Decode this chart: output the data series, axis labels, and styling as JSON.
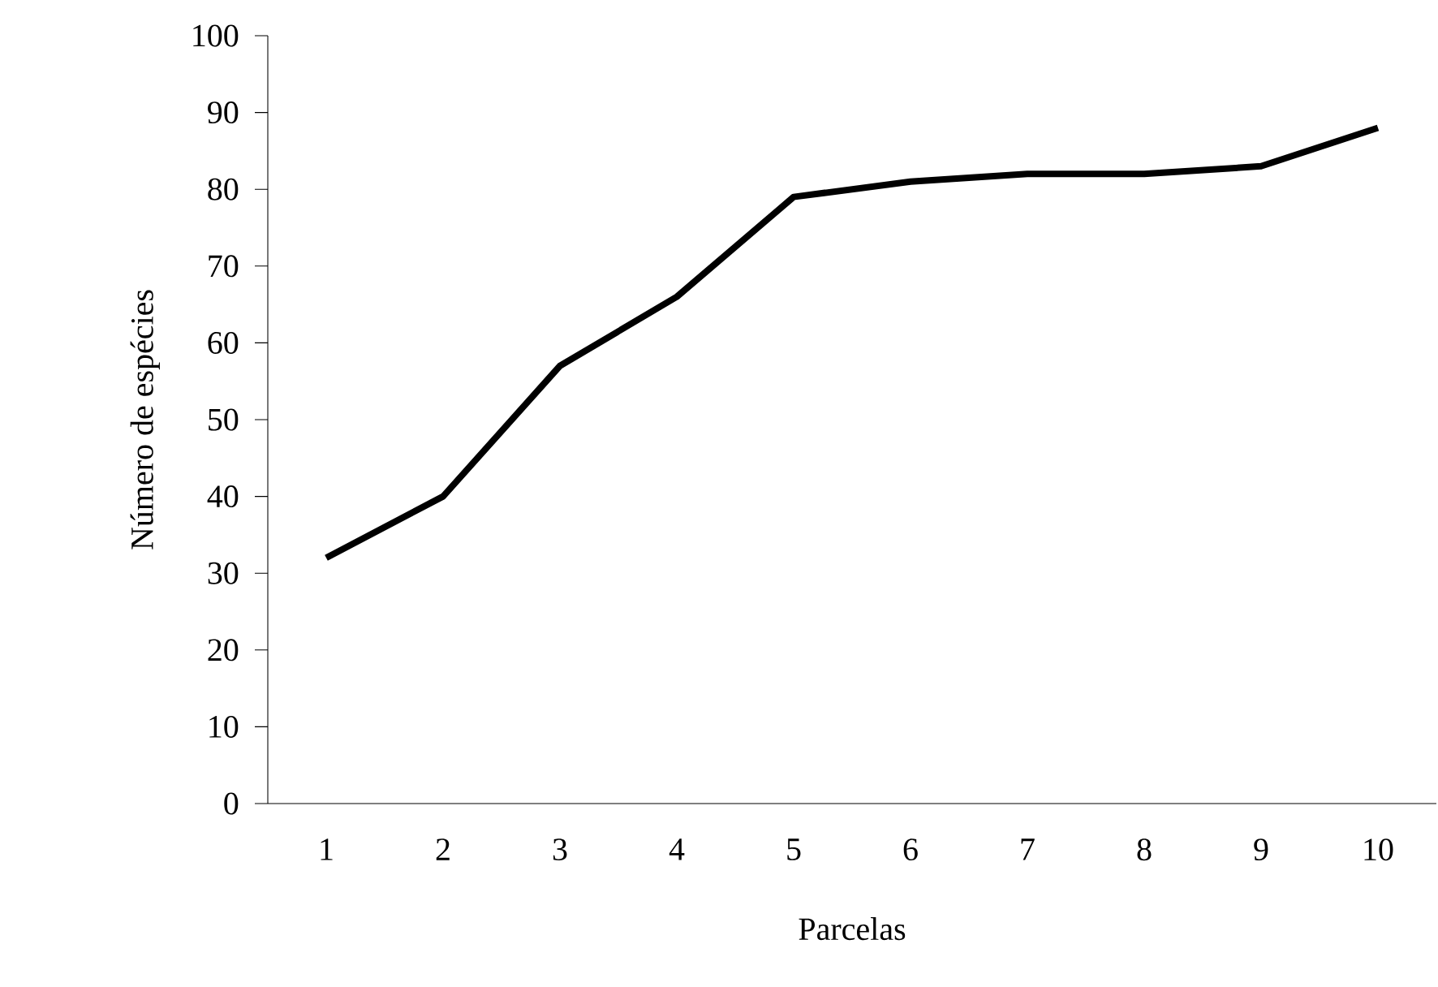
{
  "chart_data": {
    "type": "line",
    "xlabel": "Parcelas",
    "ylabel": "Número de espécies",
    "categories": [
      "1",
      "2",
      "3",
      "4",
      "5",
      "6",
      "7",
      "8",
      "9",
      "10"
    ],
    "values": [
      32,
      40,
      57,
      66,
      79,
      81,
      82,
      82,
      83,
      88
    ],
    "color": "#000000",
    "ylim": [
      0,
      100
    ],
    "yticks": [
      0,
      10,
      20,
      30,
      40,
      50,
      60,
      70,
      80,
      90,
      100
    ]
  }
}
